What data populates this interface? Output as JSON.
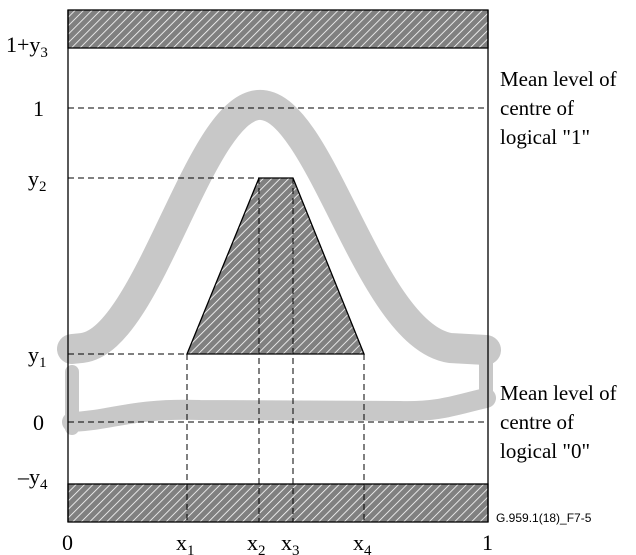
{
  "diagram": {
    "colors": {
      "band": "#c8c8c8",
      "hatch_bg": "#808080",
      "hatch_line": "#ffffff",
      "line": "#000000"
    },
    "y_labels": {
      "top": {
        "main": "1+y",
        "sub": "3"
      },
      "one": {
        "main": "1"
      },
      "y2": {
        "main": "y",
        "sub": "2"
      },
      "y1": {
        "main": "y",
        "sub": "1"
      },
      "zero": {
        "main": "0"
      },
      "bottom": {
        "main": "–y",
        "sub": "4"
      }
    },
    "x_labels": {
      "start": {
        "main": "0"
      },
      "x1": {
        "main": "x",
        "sub": "1"
      },
      "x2": {
        "main": "x",
        "sub": "2"
      },
      "x3": {
        "main": "x",
        "sub": "3"
      },
      "x4": {
        "main": "x",
        "sub": "4"
      },
      "end": {
        "main": "1"
      }
    },
    "annotations": {
      "logical_one": [
        "Mean level of",
        "centre of",
        "logical \"1\""
      ],
      "logical_zero": [
        "Mean level of",
        "centre of",
        "logical \"0\""
      ]
    },
    "figure_id": "G.959.1(18)_F7-5"
  }
}
